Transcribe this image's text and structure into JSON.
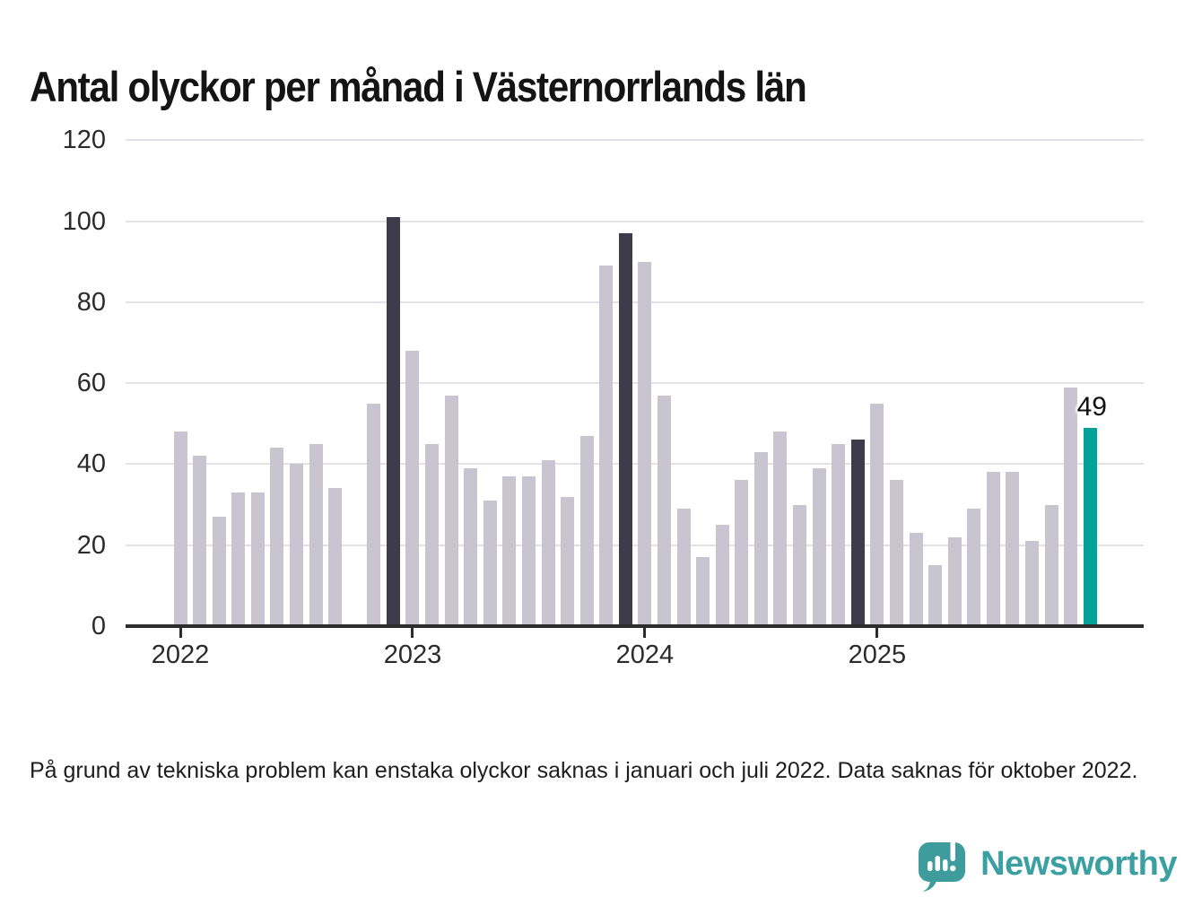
{
  "title": "Antal olyckor per månad i Västernorrlands län",
  "footnote": "På grund av tekniska problem kan enstaka olyckor saknas i januari och juli 2022. Data saknas för oktober 2022.",
  "branding": {
    "logo_text": "Newsworthy",
    "logo_icon": "speech-bubble-bar-chart-exclamation"
  },
  "colors": {
    "bar_default": "#c8c5d0",
    "bar_highlight_dark": "#3e3c4a",
    "bar_current": "#00a29a",
    "axis": "#2d2d2d",
    "grid": "#e3e2e6",
    "text": "#1e1e1e",
    "brand_teal": "#3aa0a2"
  },
  "annotation": {
    "label": "49"
  },
  "chart_data": {
    "type": "bar",
    "title": "Antal olyckor per månad i Västernorrlands län",
    "xlabel": "",
    "ylabel": "",
    "ylim": [
      0,
      120
    ],
    "yticks": [
      0,
      20,
      40,
      60,
      80,
      100,
      120
    ],
    "xticklabels": [
      "2022",
      "2023",
      "2024",
      "2025"
    ],
    "grid": true,
    "legend": false,
    "note": "Value for 2022-10 is missing (no bar). Dark bars mark December of 2022–2024; teal bar is the latest month (December 2025), labeled 49.",
    "months": [
      {
        "m": "2022-01",
        "v": 48
      },
      {
        "m": "2022-02",
        "v": 42
      },
      {
        "m": "2022-03",
        "v": 27
      },
      {
        "m": "2022-04",
        "v": 33
      },
      {
        "m": "2022-05",
        "v": 33
      },
      {
        "m": "2022-06",
        "v": 44
      },
      {
        "m": "2022-07",
        "v": 40
      },
      {
        "m": "2022-08",
        "v": 45
      },
      {
        "m": "2022-09",
        "v": 34
      },
      {
        "m": "2022-10",
        "v": null
      },
      {
        "m": "2022-11",
        "v": 55
      },
      {
        "m": "2022-12",
        "v": 101,
        "h": "dark"
      },
      {
        "m": "2023-01",
        "v": 68
      },
      {
        "m": "2023-02",
        "v": 45
      },
      {
        "m": "2023-03",
        "v": 57
      },
      {
        "m": "2023-04",
        "v": 39
      },
      {
        "m": "2023-05",
        "v": 31
      },
      {
        "m": "2023-06",
        "v": 37
      },
      {
        "m": "2023-07",
        "v": 37
      },
      {
        "m": "2023-08",
        "v": 41
      },
      {
        "m": "2023-09",
        "v": 32
      },
      {
        "m": "2023-10",
        "v": 47
      },
      {
        "m": "2023-11",
        "v": 89
      },
      {
        "m": "2023-12",
        "v": 97,
        "h": "dark"
      },
      {
        "m": "2024-01",
        "v": 90
      },
      {
        "m": "2024-02",
        "v": 57
      },
      {
        "m": "2024-03",
        "v": 29
      },
      {
        "m": "2024-04",
        "v": 17
      },
      {
        "m": "2024-05",
        "v": 25
      },
      {
        "m": "2024-06",
        "v": 36
      },
      {
        "m": "2024-07",
        "v": 43
      },
      {
        "m": "2024-08",
        "v": 48
      },
      {
        "m": "2024-09",
        "v": 30
      },
      {
        "m": "2024-10",
        "v": 39
      },
      {
        "m": "2024-11",
        "v": 45
      },
      {
        "m": "2024-12",
        "v": 46,
        "h": "dark"
      },
      {
        "m": "2025-01",
        "v": 55
      },
      {
        "m": "2025-02",
        "v": 36
      },
      {
        "m": "2025-03",
        "v": 23
      },
      {
        "m": "2025-04",
        "v": 15
      },
      {
        "m": "2025-05",
        "v": 22
      },
      {
        "m": "2025-06",
        "v": 29
      },
      {
        "m": "2025-07",
        "v": 38
      },
      {
        "m": "2025-08",
        "v": 38
      },
      {
        "m": "2025-09",
        "v": 21
      },
      {
        "m": "2025-10",
        "v": 30
      },
      {
        "m": "2025-11",
        "v": 59
      },
      {
        "m": "2025-12",
        "v": 49,
        "h": "current",
        "label": "49"
      }
    ]
  }
}
